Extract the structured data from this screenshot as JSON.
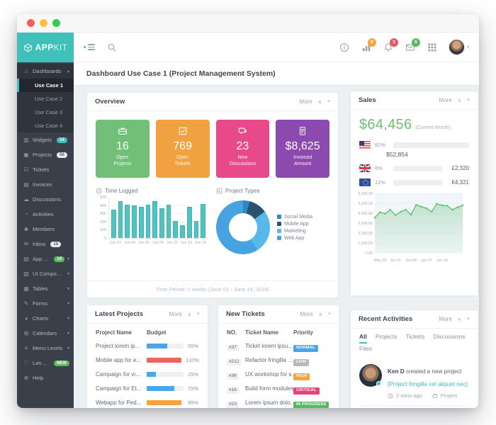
{
  "icons": {
    "collapse": "∧",
    "close": "×",
    "caret_down": "▾",
    "caret_up": "▴"
  },
  "panel_controls": {
    "more": "More"
  },
  "logo": {
    "bold": "APP",
    "light": "KIT"
  },
  "navbar": {
    "stats_badge": "8",
    "alerts_badge": "3",
    "mail_badge": "5"
  },
  "page_title": "Dashboard Use Case 1 (Project Management System)",
  "sidebar": {
    "items": [
      {
        "label": "Dashboards",
        "icon": "home-icon",
        "expanded": true,
        "children": [
          {
            "label": "Use Case 1",
            "active": true
          },
          {
            "label": "Use Case 2"
          },
          {
            "label": "Use Case 3"
          },
          {
            "label": "Use Case 4"
          }
        ]
      },
      {
        "label": "Widgets",
        "icon": "widgets-icon",
        "badge": "14",
        "badge_color": "teal"
      },
      {
        "label": "Projects",
        "icon": "projects-icon",
        "badge": "56",
        "badge_color": "gray"
      },
      {
        "label": "Tickets",
        "icon": "tickets-icon"
      },
      {
        "label": "Invoices",
        "icon": "invoices-icon"
      },
      {
        "label": "Discussions",
        "icon": "discussions-icon"
      },
      {
        "label": "Activities",
        "icon": "activities-icon"
      },
      {
        "label": "Members",
        "icon": "members-icon"
      },
      {
        "label": "Inbox",
        "icon": "inbox-icon",
        "badge": "18",
        "badge_color": "gray"
      },
      {
        "label": "App Pages",
        "icon": "apppages-icon",
        "badge": "14",
        "badge_color": "green",
        "caret": true
      },
      {
        "label": "UI Components",
        "icon": "uicomponents-icon",
        "caret": true
      },
      {
        "label": "Tables",
        "icon": "tables-icon",
        "caret": true
      },
      {
        "label": "Forms",
        "icon": "forms-icon",
        "caret": true
      },
      {
        "label": "Charts",
        "icon": "charts-icon",
        "caret": true
      },
      {
        "label": "Calendars",
        "icon": "calendars-icon",
        "caret": true
      },
      {
        "label": "Menu Levels",
        "icon": "menulevels-icon",
        "caret": true
      },
      {
        "label": "Landing Page",
        "icon": "landing-icon",
        "badge": "NEW",
        "badge_color": "green"
      },
      {
        "label": "Help",
        "icon": "help-icon"
      }
    ]
  },
  "overview": {
    "title": "Overview",
    "cards": [
      {
        "value": "16",
        "label1": "Open",
        "label2": "Projects",
        "color": "#72bf77",
        "icon": "briefcase-icon"
      },
      {
        "value": "769",
        "label1": "Open",
        "label2": "Tickets",
        "color": "#f2a140",
        "icon": "checkbox-icon"
      },
      {
        "value": "23",
        "label1": "New",
        "label2": "Discussions",
        "color": "#e8498a",
        "icon": "chat-icon"
      },
      {
        "value": "$8,625",
        "label1": "Invoiced",
        "label2": "Amount",
        "color": "#8c49ae",
        "icon": "invoice-icon"
      }
    ],
    "footer": "Time Period: 2 weeks (June 01 - June 14, 2016)"
  },
  "chart_data": [
    {
      "id": "time-logged",
      "type": "bar",
      "title": "Time Logged",
      "values": [
        355,
        460,
        415,
        405,
        390,
        415,
        455,
        365,
        415,
        215,
        155,
        385,
        215,
        420
      ],
      "xticks": [
        "Jun 02",
        "Jun 04",
        "Jun 06",
        "Jun 08",
        "Jun 10",
        "Jun 12",
        "Jun 14"
      ],
      "yticks": [
        0,
        100,
        200,
        300,
        400,
        500
      ],
      "ylim": [
        0,
        500
      ],
      "color": "#4fc4c0"
    },
    {
      "id": "project-types",
      "type": "pie",
      "title": "Project Types",
      "slices": [
        {
          "label": "Social Media",
          "value": 4,
          "color": "#3186c8"
        },
        {
          "label": "Mobile App",
          "value": 11,
          "color": "#2a516e"
        },
        {
          "label": "Marketing",
          "value": 26,
          "color": "#57b8ea"
        },
        {
          "label": "Web App",
          "value": 59,
          "color": "#46a3e0"
        }
      ]
    },
    {
      "id": "sales-trend",
      "type": "area",
      "color": "#5cbf66",
      "ymax": 6000,
      "yticks": [
        "6,000.00",
        "5,000.00",
        "4,000.00",
        "3,000.00",
        "2,000.00",
        "1,000.00",
        "0.00"
      ],
      "xticks": [
        "May 29",
        "Jun 01",
        "Jun 04",
        "Jun 07",
        "Jun 10"
      ],
      "values": [
        3550,
        4100,
        3950,
        4350,
        3800,
        4150,
        4350,
        3850,
        4850,
        4650,
        4500,
        4150,
        4950,
        4800,
        4750,
        4350,
        4600,
        4800
      ]
    }
  ],
  "sales": {
    "title": "Sales",
    "amount": "$64,456",
    "amount_note": "(Current Month)",
    "regions": [
      {
        "flag": "us",
        "pct": 82,
        "pct_label": "82%",
        "amount": "$52,854",
        "amount_below": true
      },
      {
        "flag": "gb",
        "pct": 6,
        "pct_label": "6%",
        "amount": "£2,320",
        "amount_below": false
      },
      {
        "flag": "eu",
        "pct": 12,
        "pct_label": "12%",
        "amount": "€4,321",
        "amount_below": false
      }
    ]
  },
  "latest_projects": {
    "title": "Latest Projects",
    "col_name": "Project Name",
    "col_budget": "Budget",
    "rows": [
      {
        "name": "Project lorem ip...",
        "pct": 55,
        "pct_label": "55%",
        "color": "#49a7e9"
      },
      {
        "name": "Mobile app for e...",
        "pct": 100,
        "pct_label": "110%",
        "color": "#ef6458"
      },
      {
        "name": "Campaign for vi...",
        "pct": 25,
        "pct_label": "25%",
        "color": "#49a7e9"
      },
      {
        "name": "Campaign for Et...",
        "pct": 75,
        "pct_label": "75%",
        "color": "#49a7e9"
      },
      {
        "name": "Webapp for Ped...",
        "pct": 95,
        "pct_label": "95%",
        "color": "#f6a43d"
      }
    ]
  },
  "new_tickets": {
    "title": "New Tickets",
    "col_no": "NO.",
    "col_name": "Ticket Name",
    "col_priority": "Priority",
    "rows": [
      {
        "no": "#37",
        "name": "Ticket lorem ipsu...",
        "priority": "NORMAL",
        "color": "#4aa6e8"
      },
      {
        "no": "#212",
        "name": "Refactor fringilla ...",
        "priority": "LOW",
        "color": "#b4bac0"
      },
      {
        "no": "#36",
        "name": "UX workshop for s...",
        "priority": "HIGH",
        "color": "#f6a43d"
      },
      {
        "no": "#16",
        "name": "Build form modules",
        "priority": "CRITICAL",
        "color": "#e8417e"
      },
      {
        "no": "#23",
        "name": "Lorem ipsum dolo...",
        "priority": "IN PROGRESS",
        "color": "#56b860"
      }
    ]
  },
  "recent_activities": {
    "title": "Recent Activities",
    "tabs": [
      "All",
      "Projects",
      "Tickets",
      "Discussions",
      "Files"
    ],
    "active_tab": "All",
    "activity": {
      "user": "Ken D",
      "action": "created a new project",
      "link": "[Project fringilla vel aliquet nec]",
      "time": "2 mins ago",
      "type": "Project"
    }
  }
}
